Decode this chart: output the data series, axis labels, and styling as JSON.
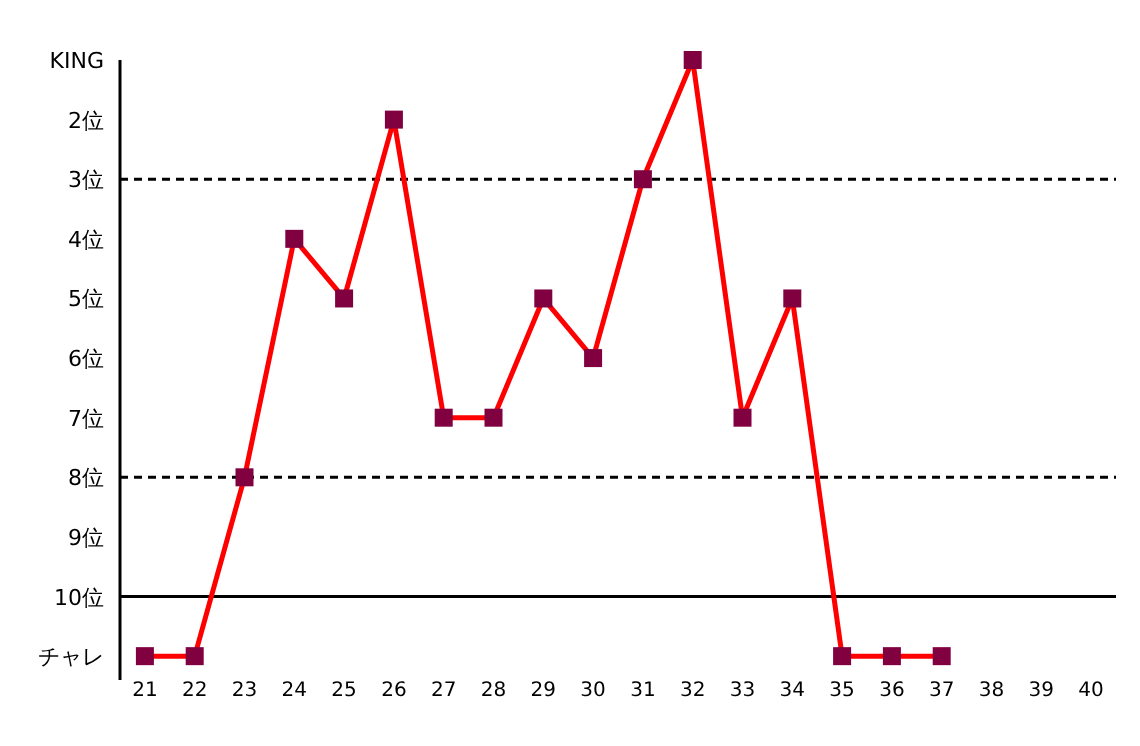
{
  "chart_data": {
    "type": "line",
    "x": [
      21,
      22,
      23,
      24,
      25,
      26,
      27,
      28,
      29,
      30,
      31,
      32,
      33,
      34,
      35,
      36,
      37
    ],
    "series": [
      {
        "color": "#ff0000",
        "colors": [
          "#800040",
          "#800040",
          "#800040",
          "#800040",
          "#800040",
          "#800040",
          "#800040",
          "#800040",
          "#800040",
          "#800040",
          "#800040",
          "#800040",
          "#800040",
          "#800040",
          "#800040",
          "#800040",
          "#800040"
        ],
        "values": [
          11,
          11,
          8,
          4,
          5,
          2,
          7,
          7,
          5,
          6,
          3,
          1,
          7,
          5,
          11,
          11,
          11
        ]
      }
    ],
    "marker": "square",
    "line_style": "solid",
    "xlim": [
      20.5,
      40.5
    ],
    "xticks": [
      21,
      22,
      23,
      24,
      25,
      26,
      27,
      28,
      29,
      30,
      31,
      32,
      33,
      34,
      35,
      36,
      37,
      38,
      39,
      40
    ],
    "ylim": [
      11.4,
      1
    ],
    "yticks": [
      {
        "value": 1,
        "label": "KING"
      },
      {
        "value": 2,
        "label": "2位"
      },
      {
        "value": 3,
        "label": "3位"
      },
      {
        "value": 4,
        "label": "4位"
      },
      {
        "value": 5,
        "label": "5位"
      },
      {
        "value": 6,
        "label": "6位"
      },
      {
        "value": 7,
        "label": "7位"
      },
      {
        "value": 8,
        "label": "8位"
      },
      {
        "value": 9,
        "label": "9位"
      },
      {
        "value": 10,
        "label": "10位"
      },
      {
        "value": 11,
        "label": "チャレ"
      }
    ],
    "ref_lines": [
      {
        "axis": "y",
        "value": 3,
        "color": "#000000",
        "line_style": "dashed"
      },
      {
        "axis": "y",
        "value": 8,
        "color": "#000000",
        "line_style": "dashed"
      },
      {
        "axis": "y",
        "value": 10,
        "color": "#000000",
        "line_style": "solid"
      }
    ]
  }
}
